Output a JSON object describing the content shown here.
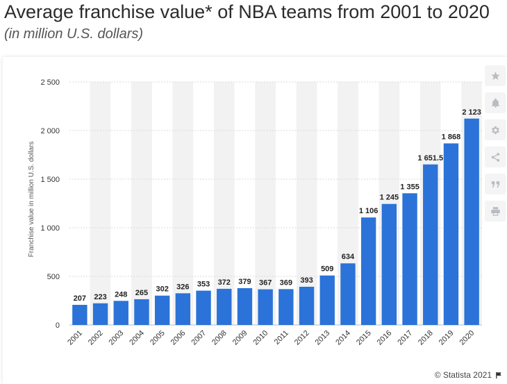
{
  "header": {
    "title": "Average franchise value* of NBA teams from 2001 to 2020",
    "subtitle": "(in million U.S. dollars)"
  },
  "footer": {
    "credit": "© Statista 2021"
  },
  "toolbar": {
    "icons": [
      "star-icon",
      "bell-icon",
      "gear-icon",
      "share-icon",
      "quote-icon",
      "print-icon"
    ]
  },
  "colors": {
    "bar": "#2b73d8",
    "band": "#f2f2f2",
    "grid": "#d9d9d9",
    "text": "#333333"
  },
  "chart_data": {
    "type": "bar",
    "categories": [
      "2001",
      "2002",
      "2003",
      "2004",
      "2005",
      "2006",
      "2007",
      "2008",
      "2009",
      "2010",
      "2011",
      "2012",
      "2013",
      "2014",
      "2015",
      "2016",
      "2017",
      "2018",
      "2019",
      "2020"
    ],
    "values": [
      207,
      223,
      248,
      265,
      302,
      326,
      353,
      372,
      379,
      367,
      369,
      393,
      509,
      634,
      1106,
      1245,
      1355,
      1651.5,
      1868,
      2123
    ],
    "labels": [
      "207",
      "223",
      "248",
      "265",
      "302",
      "326",
      "353",
      "372",
      "379",
      "367",
      "369",
      "393",
      "509",
      "634",
      "1 106",
      "1 245",
      "1 355",
      "1 651.5",
      "1 868",
      "2 123"
    ],
    "yticks": [
      0,
      500,
      1000,
      1500,
      2000,
      2500
    ],
    "ytick_labels": [
      "0",
      "500",
      "1 000",
      "1 500",
      "2 000",
      "2 500"
    ],
    "ylim": [
      0,
      2500
    ],
    "ylabel": "Franchise value in million U.S. dollars",
    "xlabel": "",
    "grid": true
  }
}
